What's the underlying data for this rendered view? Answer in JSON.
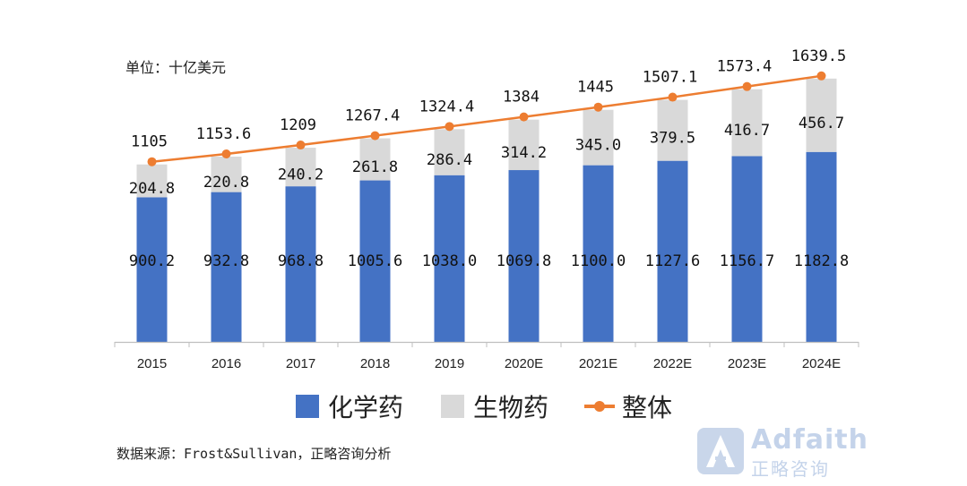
{
  "unit_label": "单位：十亿美元",
  "source_label": "数据来源：Frost&Sullivan，正略咨询分析",
  "legend": {
    "chemical": "化学药",
    "biologic": "生物药",
    "total": "整体"
  },
  "logo": {
    "name": "Adfaith",
    "sub": "正略咨询"
  },
  "colors": {
    "chemical": "#4472C4",
    "biologic": "#D9D9D9",
    "total": "#ED7D31"
  },
  "chart_data": {
    "type": "bar",
    "stacked": true,
    "categories": [
      "2015",
      "2016",
      "2017",
      "2018",
      "2019",
      "2020E",
      "2021E",
      "2022E",
      "2023E",
      "2024E"
    ],
    "series": [
      {
        "name": "化学药",
        "type": "bar",
        "values": [
          900.2,
          932.8,
          968.8,
          1005.6,
          1038.0,
          1069.8,
          1100.0,
          1127.6,
          1156.7,
          1182.8
        ],
        "labels": [
          "900.2",
          "932.8",
          "968.8",
          "1005.6",
          "1038.0",
          "1069.8",
          "1100.0",
          "1127.6",
          "1156.7",
          "1182.8"
        ]
      },
      {
        "name": "生物药",
        "type": "bar",
        "values": [
          204.8,
          220.8,
          240.2,
          261.8,
          286.4,
          314.2,
          345.0,
          379.5,
          416.7,
          456.7
        ],
        "labels": [
          "204.8",
          "220.8",
          "240.2",
          "261.8",
          "286.4",
          "314.2",
          "345.0",
          "379.5",
          "416.7",
          "456.7"
        ]
      },
      {
        "name": "整体",
        "type": "line",
        "values": [
          1105,
          1153.6,
          1209,
          1267.4,
          1324.4,
          1384,
          1445,
          1507.1,
          1573.4,
          1639.5
        ],
        "labels": [
          "1105",
          "1153.6",
          "1209",
          "1267.4",
          "1324.4",
          "1384",
          "1445",
          "1507.1",
          "1573.4",
          "1639.5"
        ]
      }
    ],
    "ylim": [
      0,
      1800
    ],
    "grid": false,
    "legend_position": "bottom"
  }
}
